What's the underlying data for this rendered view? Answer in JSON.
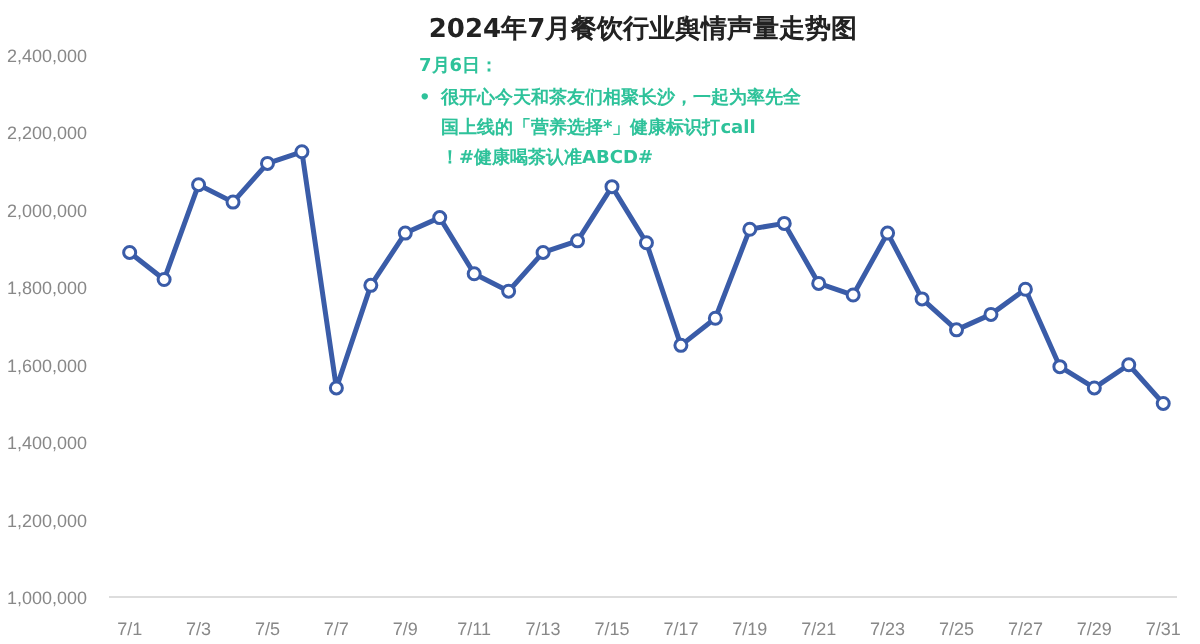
{
  "chart_data": {
    "type": "line",
    "title": "2024年7月餐饮行业舆情声量走势图",
    "categories": [
      "7/1",
      null,
      "7/3",
      null,
      "7/5",
      null,
      "7/7",
      null,
      "7/9",
      null,
      "7/11",
      null,
      "7/13",
      null,
      "7/15",
      null,
      "7/17",
      null,
      "7/19",
      null,
      "7/21",
      null,
      "7/23",
      null,
      "7/25",
      null,
      "7/27",
      null,
      "7/29",
      null,
      "7/31"
    ],
    "series": [
      {
        "color": "#3a5ca8",
        "values": [
          1890000,
          1820000,
          2065000,
          2020000,
          2120000,
          2150000,
          1540000,
          1805000,
          1940000,
          1980000,
          1835000,
          1790000,
          1890000,
          1920000,
          2060000,
          1915000,
          1650000,
          1720000,
          1950000,
          1965000,
          1810000,
          1780000,
          1940000,
          1770000,
          1690000,
          1730000,
          1795000,
          1595000,
          1540000,
          1600000,
          1500000
        ]
      }
    ],
    "ylim": [
      1000000,
      2400000
    ],
    "yticks": [
      {
        "value": 1000000,
        "label": "1,000,000"
      },
      {
        "value": 1200000,
        "label": "1,200,000"
      },
      {
        "value": 1400000,
        "label": "1,400,000"
      },
      {
        "value": 1600000,
        "label": "1,600,000"
      },
      {
        "value": 1800000,
        "label": "1,800,000"
      },
      {
        "value": 2000000,
        "label": "2,000,000"
      },
      {
        "value": 2200000,
        "label": "2,200,000"
      },
      {
        "value": 2400000,
        "label": "2,400,000"
      }
    ],
    "annotations": [
      "7月6日：",
      "•",
      "很开心今天和茶友们相聚长沙，一起为率先全国上线的「营养选择*」健康标识打call！#健康喝茶认准ABCD#"
    ],
    "marker": "circle",
    "grid": false
  }
}
